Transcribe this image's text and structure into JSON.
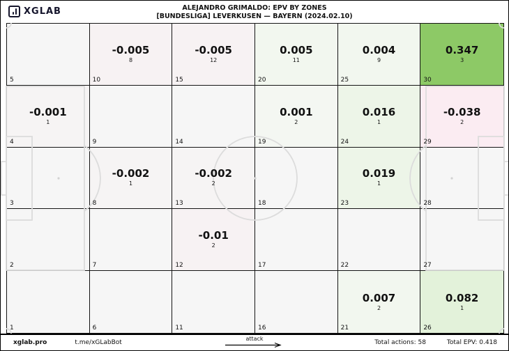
{
  "header": {
    "logo_text": "XGLAB",
    "title_line1": "ALEJANDRO GRIMALDO: EPV BY ZONES",
    "title_line2": "[BUNDESLIGA] LEVERKUSEN — BAYERN (2024.02.10)"
  },
  "footer": {
    "site": "xglab.pro",
    "bot": "t.me/xGLabBot",
    "attack_label": "attack",
    "total_actions": "Total actions: 58",
    "total_epv": "Total EPV: 0.418"
  },
  "chart_data": {
    "type": "heatmap",
    "title": "ALEJANDRO GRIMALDO: EPV BY ZONES",
    "subtitle": "[BUNDESLIGA] LEVERKUSEN — BAYERN (2024.02.10)",
    "grid": {
      "columns": 6,
      "rows": 5
    },
    "attack_direction": "left-to-right",
    "totals": {
      "total_actions": 58,
      "total_epv": 0.418
    },
    "legend": "each cell: EPV value (large), action count (small), zone number (bottom-left)",
    "zones": [
      {
        "zone": 5,
        "value": "",
        "count": "",
        "bg": "#f6f6f6"
      },
      {
        "zone": 10,
        "value": "-0.005",
        "count": "8",
        "bg": "#f7f2f3"
      },
      {
        "zone": 15,
        "value": "-0.005",
        "count": "12",
        "bg": "#f7f2f3"
      },
      {
        "zone": 20,
        "value": "0.005",
        "count": "11",
        "bg": "#f2f7ef"
      },
      {
        "zone": 25,
        "value": "0.004",
        "count": "9",
        "bg": "#f2f7ef"
      },
      {
        "zone": 30,
        "value": "0.347",
        "count": "3",
        "bg": "#8dc966"
      },
      {
        "zone": 4,
        "value": "-0.001",
        "count": "1",
        "bg": "#f6f4f4"
      },
      {
        "zone": 9,
        "value": "",
        "count": "",
        "bg": "#f6f6f6"
      },
      {
        "zone": 14,
        "value": "",
        "count": "",
        "bg": "#f6f6f6"
      },
      {
        "zone": 19,
        "value": "0.001",
        "count": "2",
        "bg": "#f4f7f2"
      },
      {
        "zone": 24,
        "value": "0.016",
        "count": "1",
        "bg": "#edf5e8"
      },
      {
        "zone": 29,
        "value": "-0.038",
        "count": "2",
        "bg": "#fbecf2"
      },
      {
        "zone": 3,
        "value": "",
        "count": "",
        "bg": "#f6f6f6"
      },
      {
        "zone": 8,
        "value": "-0.002",
        "count": "1",
        "bg": "#f6f4f4"
      },
      {
        "zone": 13,
        "value": "-0.002",
        "count": "2",
        "bg": "#f6f4f4"
      },
      {
        "zone": 18,
        "value": "",
        "count": "",
        "bg": "#f6f6f6"
      },
      {
        "zone": 23,
        "value": "0.019",
        "count": "1",
        "bg": "#edf5e8"
      },
      {
        "zone": 28,
        "value": "",
        "count": "",
        "bg": "#f6f6f6"
      },
      {
        "zone": 2,
        "value": "",
        "count": "",
        "bg": "#f6f6f6"
      },
      {
        "zone": 7,
        "value": "",
        "count": "",
        "bg": "#f6f6f6"
      },
      {
        "zone": 12,
        "value": "-0.01",
        "count": "2",
        "bg": "#f7f2f3"
      },
      {
        "zone": 17,
        "value": "",
        "count": "",
        "bg": "#f6f6f6"
      },
      {
        "zone": 22,
        "value": "",
        "count": "",
        "bg": "#f6f6f6"
      },
      {
        "zone": 27,
        "value": "",
        "count": "",
        "bg": "#f6f6f6"
      },
      {
        "zone": 1,
        "value": "",
        "count": "",
        "bg": "#f6f6f6"
      },
      {
        "zone": 6,
        "value": "",
        "count": "",
        "bg": "#f6f6f6"
      },
      {
        "zone": 11,
        "value": "",
        "count": "",
        "bg": "#f6f6f6"
      },
      {
        "zone": 16,
        "value": "",
        "count": "",
        "bg": "#f6f6f6"
      },
      {
        "zone": 21,
        "value": "0.007",
        "count": "2",
        "bg": "#f2f7ef"
      },
      {
        "zone": 26,
        "value": "0.082",
        "count": "1",
        "bg": "#e3f2da"
      }
    ],
    "colors": {
      "max_positive": "#8dc966",
      "light_positive": "#e3f2da",
      "light_negative": "#fbecf2",
      "neutral": "#f6f6f6",
      "grid_line": "#141414",
      "pitch_line": "#dcdcdc"
    }
  }
}
